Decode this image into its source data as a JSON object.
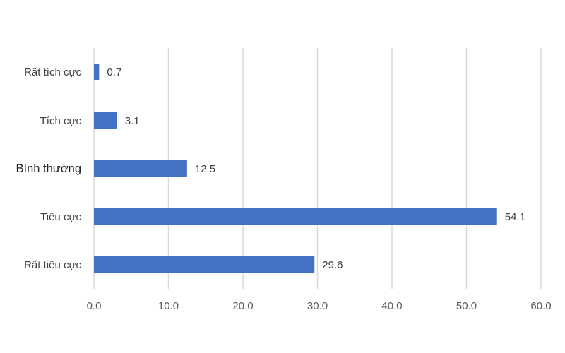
{
  "chart_data": {
    "type": "bar",
    "orientation": "horizontal",
    "categories": [
      "Rất tích cực",
      "Tích cực",
      "Bình thường",
      "Tiêu cực",
      "Rất tiêu cực"
    ],
    "values": [
      0.7,
      3.1,
      12.5,
      54.1,
      29.6
    ],
    "value_labels": [
      "0.7",
      "3.1",
      "12.5",
      "54.1",
      "29.6"
    ],
    "x_ticks": [
      "0.0",
      "10.0",
      "20.0",
      "30.0",
      "40.0",
      "50.0",
      "60.0"
    ],
    "xlim": [
      0,
      60
    ],
    "grid": true,
    "legend": "none",
    "bar_color": "#4472c4",
    "grid_color": "#d9d9d9"
  }
}
